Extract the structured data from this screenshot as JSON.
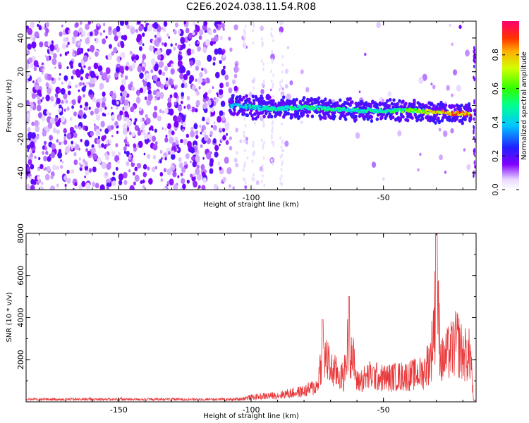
{
  "title": "C2E6.2024.038.11.54.R08",
  "chart_data": [
    {
      "type": "heatmap",
      "description_source": "spectrogram",
      "xlabel": "Height of straight line (km)",
      "ylabel": "Frequency (Hz)",
      "xlim": [
        -185,
        -15
      ],
      "ylim": [
        -50,
        50
      ],
      "xticks": [
        "-150",
        "-100",
        "-50"
      ],
      "yticks": [
        "-40",
        "-20",
        "0",
        "20",
        "40"
      ],
      "colorbar": {
        "label": "Normalized spectral amplitude",
        "ticks": [
          "0.0",
          "0.2",
          "0.4",
          "0.6",
          "0.8"
        ],
        "range": [
          0,
          1
        ]
      },
      "signal_track": {
        "x": [
          -108,
          -100,
          -90,
          -80,
          -70,
          -60,
          -50,
          -40,
          -30,
          -20,
          -17
        ],
        "freq": [
          0,
          -1,
          -2,
          -1,
          -2,
          -3,
          -3,
          -3,
          -4,
          -5,
          -5
        ],
        "amplitude": [
          0.4,
          0.45,
          0.5,
          0.55,
          0.55,
          0.5,
          0.55,
          0.65,
          0.85,
          0.95,
          0.95
        ]
      }
    },
    {
      "type": "line",
      "xlabel": "Height of straight line (km)",
      "ylabel": "SNR (10 * v/v)",
      "xlim": [
        -185,
        -15
      ],
      "ylim": [
        0,
        8000
      ],
      "xticks": [
        "-150",
        "-100",
        "-50"
      ],
      "yticks": [
        "2000",
        "4000",
        "6000",
        "8000"
      ],
      "color": "#e8383a",
      "envelope": {
        "x": [
          -185,
          -150,
          -110,
          -105,
          -100,
          -90,
          -80,
          -75,
          -73,
          -70,
          -65,
          -63,
          -60,
          -55,
          -50,
          -40,
          -35,
          -32,
          -30,
          -28,
          -25,
          -22,
          -20,
          -17,
          -16,
          -15
        ],
        "y": [
          120,
          130,
          160,
          200,
          350,
          500,
          800,
          1200,
          3900,
          2500,
          1800,
          5000,
          1500,
          2000,
          1800,
          2000,
          2200,
          3500,
          8000,
          3000,
          3800,
          4500,
          3600,
          3500,
          100,
          50
        ]
      }
    }
  ]
}
